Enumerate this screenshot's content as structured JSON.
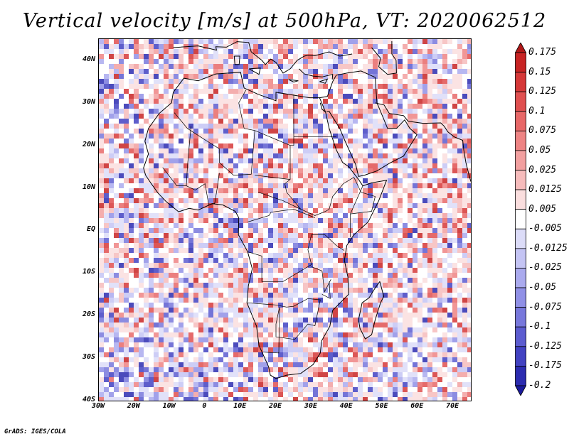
{
  "title": "Vertical velocity [m/s] at 500hPa, VT: 2020062512",
  "footer": "GrADS: IGES/COLA",
  "lat_labels": [
    "40N",
    "30N",
    "20N",
    "10N",
    "EQ",
    "10S",
    "20S",
    "30S",
    "40S"
  ],
  "lat_values": [
    40,
    30,
    20,
    10,
    0,
    -10,
    -20,
    -30,
    -40
  ],
  "lon_labels": [
    "30W",
    "20W",
    "10W",
    "0",
    "10E",
    "20E",
    "30E",
    "40E",
    "50E",
    "60E",
    "70E"
  ],
  "lon_values": [
    -30,
    -20,
    -10,
    0,
    10,
    20,
    30,
    40,
    50,
    60,
    70
  ],
  "domain": {
    "lon_min": -30,
    "lon_max": 75,
    "lat_min": -40,
    "lat_max": 45
  },
  "colorbar": {
    "labels": [
      "0.175",
      "0.15",
      "0.125",
      "0.1",
      "0.075",
      "0.05",
      "0.025",
      "0.0125",
      "0.005",
      "-0.005",
      "-0.0125",
      "-0.025",
      "-0.05",
      "-0.075",
      "-0.1",
      "-0.125",
      "-0.175",
      "-0.2"
    ],
    "colors": [
      "#b01818",
      "#c82424",
      "#d63838",
      "#e05050",
      "#e86868",
      "#ee8484",
      "#f2a0a0",
      "#f6bcbc",
      "#fadede",
      "#ffffff",
      "#dcdcf8",
      "#c4c4f4",
      "#aaaaee",
      "#9090e6",
      "#7878dc",
      "#5c5cd0",
      "#4242c2",
      "#2c2cb0",
      "#1a1a9c"
    ]
  },
  "units": "m/s",
  "pressure_level": "500hPa",
  "valid_time": "2020062512"
}
